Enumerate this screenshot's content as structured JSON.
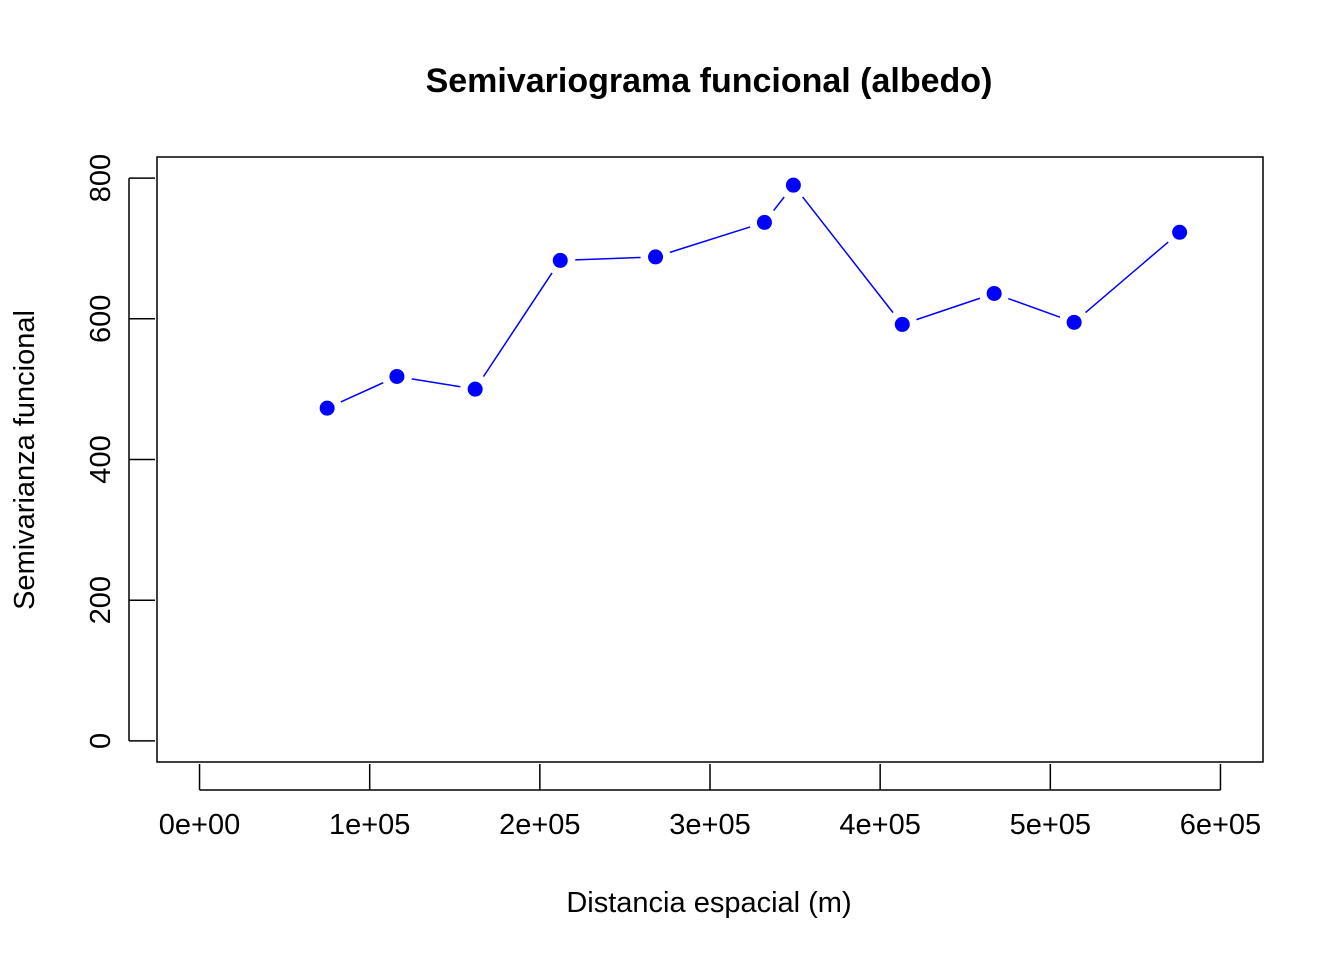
{
  "chart_data": {
    "type": "line",
    "title": "Semivariograma funcional (albedo)",
    "xlabel": "Distancia espacial (m)",
    "ylabel": "Semivarianza funcional",
    "xlim": [
      -25000,
      625000
    ],
    "ylim": [
      -30,
      830
    ],
    "x_ticks": [
      0,
      100000,
      200000,
      300000,
      400000,
      500000,
      600000
    ],
    "x_tick_labels": [
      "0e+00",
      "1e+05",
      "2e+05",
      "3e+05",
      "4e+05",
      "5e+05",
      "6e+05"
    ],
    "y_ticks": [
      0,
      200,
      400,
      600,
      800
    ],
    "y_tick_labels": [
      "0",
      "200",
      "400",
      "600",
      "800"
    ],
    "grid": false,
    "series": [
      {
        "color": "#0000ff",
        "points": [
          {
            "x": 75000,
            "y": 473
          },
          {
            "x": 116000,
            "y": 518
          },
          {
            "x": 162000,
            "y": 500
          },
          {
            "x": 212000,
            "y": 683
          },
          {
            "x": 268000,
            "y": 688
          },
          {
            "x": 332000,
            "y": 737
          },
          {
            "x": 349000,
            "y": 790
          },
          {
            "x": 413000,
            "y": 592
          },
          {
            "x": 467000,
            "y": 636
          },
          {
            "x": 514000,
            "y": 595
          },
          {
            "x": 576000,
            "y": 723
          }
        ]
      }
    ]
  }
}
